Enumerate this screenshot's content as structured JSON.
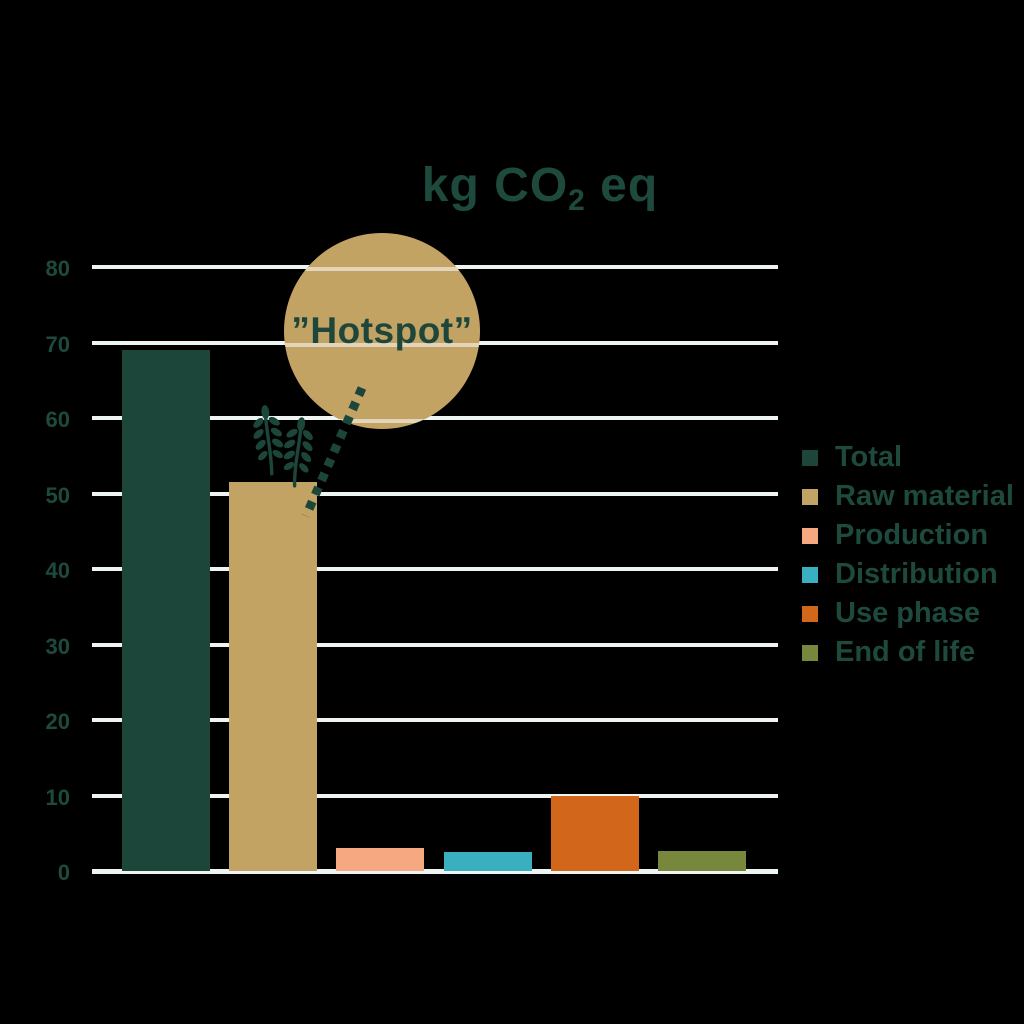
{
  "title": {
    "prefix": "kg CO",
    "sub": "2",
    "suffix": " eq"
  },
  "annotation": {
    "label": "”Hotspot”",
    "target": "Raw material",
    "circle_color": "#c2a364",
    "connector_style": "dotted"
  },
  "icons": {
    "wheat": "wheat-icon above Raw material bar"
  },
  "colors": {
    "background": "#000000",
    "text": "#1e4a3e",
    "gridline": "#eef4f1",
    "dark_green": "#1d463b",
    "tan": "#c2a364",
    "salmon": "#f6a981",
    "teal": "#39afc0",
    "orange": "#d2661a",
    "olive": "#77883c"
  },
  "chart_data": {
    "type": "bar",
    "title": "kg CO2 eq",
    "categories": [
      "Total",
      "Raw material",
      "Production",
      "Distribution",
      "Use phase",
      "End of life"
    ],
    "values": [
      69,
      51.5,
      3,
      2.5,
      10,
      2.6
    ],
    "bar_colors": [
      "#1d463b",
      "#c2a364",
      "#f6a981",
      "#39afc0",
      "#d2661a",
      "#77883c"
    ],
    "xlabel": "",
    "ylabel": "",
    "yticks": [
      0,
      10,
      20,
      30,
      40,
      50,
      60,
      70,
      80
    ],
    "ylim": [
      0,
      80
    ],
    "grid": true,
    "gridline_color": "#eef4f1",
    "legend_position": "right",
    "annotation_text": "”Hotspot”"
  },
  "legend": {
    "items": [
      {
        "label": "Total",
        "color": "#1d463b"
      },
      {
        "label": "Raw material",
        "color": "#c2a364"
      },
      {
        "label": "Production",
        "color": "#f6a981"
      },
      {
        "label": "Distribution",
        "color": "#39afc0"
      },
      {
        "label": "Use phase",
        "color": "#d2661a"
      },
      {
        "label": "End of life",
        "color": "#77883c"
      }
    ]
  }
}
